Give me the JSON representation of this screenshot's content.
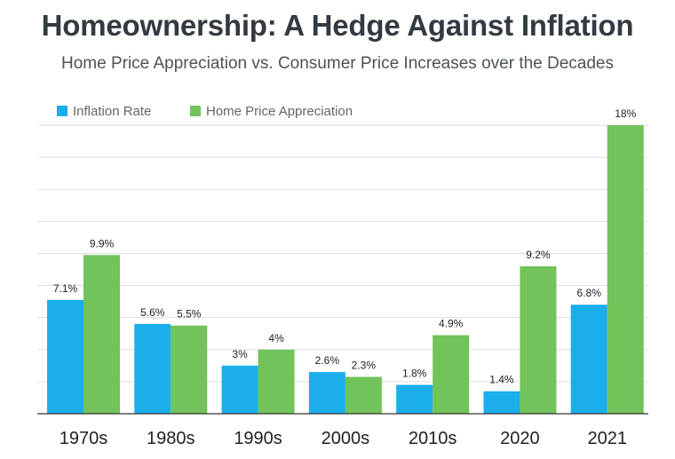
{
  "chart_data": {
    "type": "bar",
    "title": "Homeownership: A Hedge Against Inflation",
    "subtitle": "Home Price Appreciation vs. Consumer Price Increases over the Decades",
    "categories": [
      "1970s",
      "1980s",
      "1990s",
      "2000s",
      "2010s",
      "2020",
      "2021"
    ],
    "series": [
      {
        "name": "Inflation Rate",
        "color": "#1aaeeb",
        "values": [
          7.1,
          5.6,
          3,
          2.6,
          1.8,
          1.4,
          6.8
        ],
        "labels": [
          "7.1%",
          "5.6%",
          "3%",
          "2.6%",
          "1.8%",
          "1.4%",
          "6.8%"
        ]
      },
      {
        "name": "Home Price Appreciation",
        "color": "#71c35a",
        "values": [
          9.9,
          5.5,
          4,
          2.3,
          4.9,
          9.2,
          18
        ],
        "labels": [
          "9.9%",
          "5.5%",
          "4%",
          "2.3%",
          "4.9%",
          "9.2%",
          "18%"
        ]
      }
    ],
    "xlabel": "",
    "ylabel": "",
    "ylim": [
      0,
      18
    ],
    "grid": true,
    "legend": "top-left",
    "gridline_color": "#dddddd"
  }
}
